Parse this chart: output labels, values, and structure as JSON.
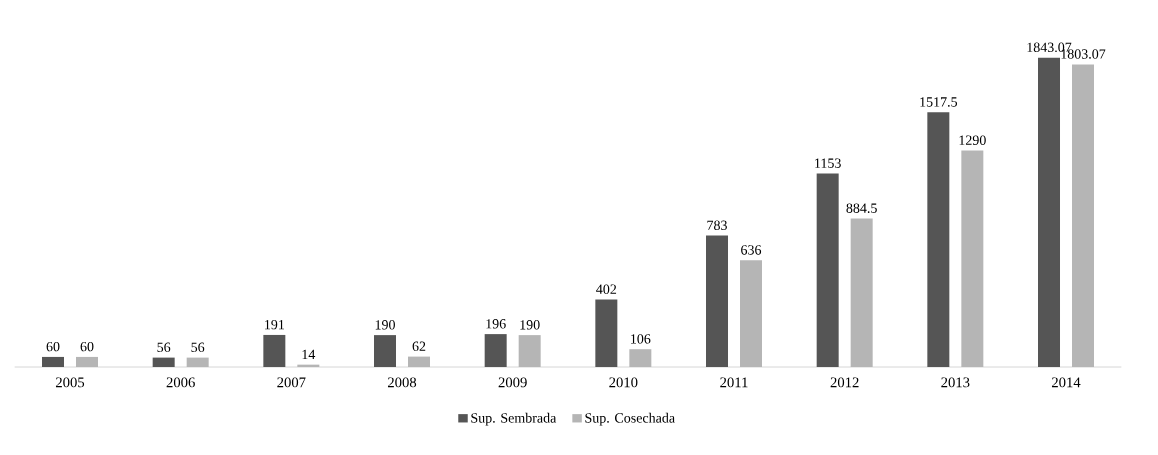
{
  "chart_data": {
    "type": "bar",
    "categories": [
      "2005",
      "2006",
      "2007",
      "2008",
      "2009",
      "2010",
      "2011",
      "2012",
      "2013",
      "2014"
    ],
    "series": [
      {
        "name": "Sup. Sembrada",
        "color": "#555555",
        "values": [
          60,
          56,
          191,
          190,
          196,
          402,
          783,
          1153,
          1517.5,
          1843.07
        ]
      },
      {
        "name": "Sup. Cosechada",
        "color": "#b5b5b5",
        "values": [
          60,
          56,
          14,
          62,
          190,
          106,
          636,
          884.5,
          1290,
          1803.07
        ]
      }
    ],
    "data_labels": true,
    "legend": "bottom"
  }
}
